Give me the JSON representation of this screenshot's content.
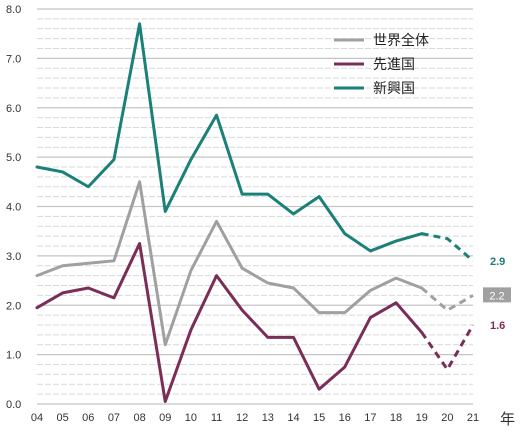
{
  "chart_data": {
    "type": "line",
    "categories": [
      "04",
      "05",
      "06",
      "07",
      "08",
      "09",
      "10",
      "11",
      "12",
      "13",
      "14",
      "15",
      "16",
      "17",
      "18",
      "19",
      "20",
      "21"
    ],
    "x_unit_label": "年",
    "ylim": [
      0,
      8
    ],
    "yticks": [
      "0.0",
      "1.0",
      "2.0",
      "3.0",
      "4.0",
      "5.0",
      "6.0",
      "7.0",
      "8.0"
    ],
    "grid": "horizontal-dashed",
    "legend_position": "top-right",
    "projection_start_index": 15,
    "series": [
      {
        "name": "世界全体",
        "color": "#a0a0a0",
        "values": [
          2.6,
          2.8,
          2.85,
          2.9,
          4.5,
          1.2,
          2.7,
          3.7,
          2.75,
          2.45,
          2.35,
          1.85,
          1.85,
          2.3,
          2.55,
          2.35,
          1.9,
          2.2
        ],
        "end_label": "2.2",
        "end_label_style": "box"
      },
      {
        "name": "先進国",
        "color": "#7a2e57",
        "values": [
          1.95,
          2.25,
          2.35,
          2.15,
          3.25,
          0.05,
          1.5,
          2.6,
          1.9,
          1.35,
          1.35,
          0.3,
          0.75,
          1.75,
          2.05,
          1.45,
          0.7,
          1.6
        ],
        "end_label": "1.6",
        "end_label_style": "text"
      },
      {
        "name": "新興国",
        "color": "#1a8078",
        "values": [
          4.8,
          4.7,
          4.4,
          4.95,
          7.7,
          3.9,
          4.95,
          5.85,
          4.25,
          4.25,
          3.85,
          4.2,
          3.45,
          3.1,
          3.3,
          3.45,
          3.35,
          2.9
        ],
        "end_label": "2.9",
        "end_label_style": "text"
      }
    ]
  }
}
